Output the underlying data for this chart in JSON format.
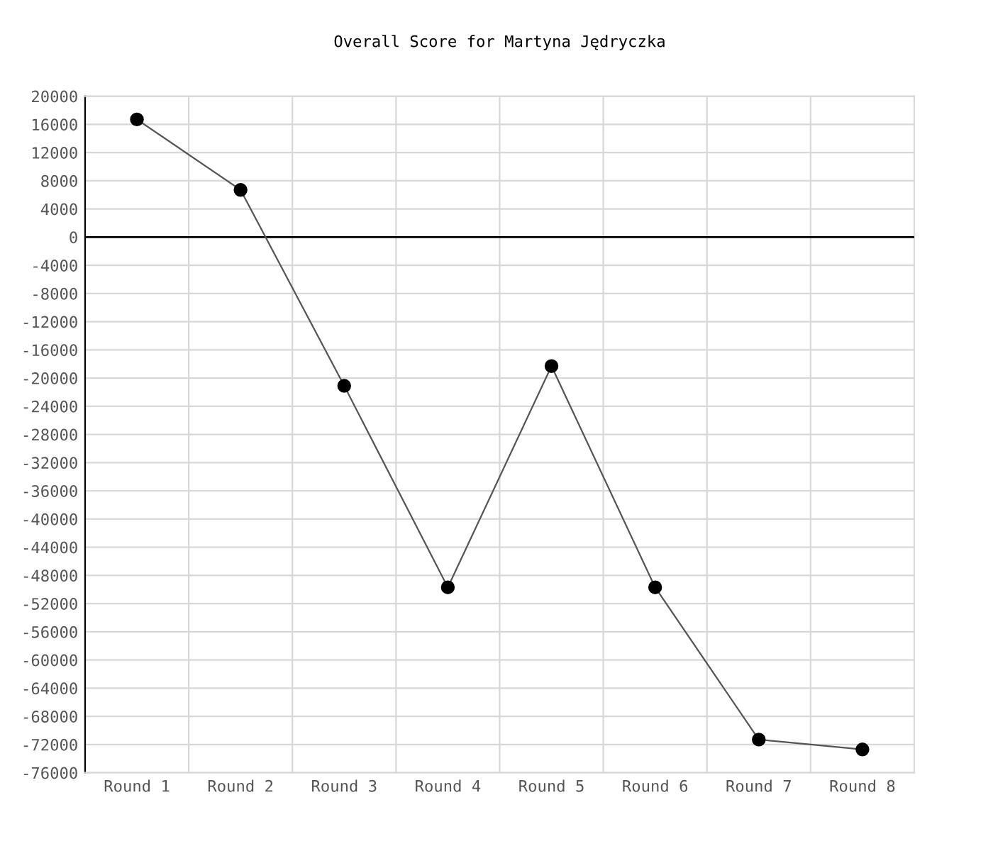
{
  "chart_data": {
    "type": "line",
    "title": "Overall Score for Martyna Jędryczka",
    "categories": [
      "Round 1",
      "Round 2",
      "Round 3",
      "Round 4",
      "Round 5",
      "Round 6",
      "Round 7",
      "Round 8"
    ],
    "series": [
      {
        "color": "#000000",
        "values": [
          16700,
          6700,
          -21100,
          -49700,
          -18300,
          -49700,
          -71300,
          -72700
        ]
      }
    ],
    "ylim": [
      -76000,
      20000
    ],
    "yticks": [
      -76000,
      -72000,
      -68000,
      -64000,
      -60000,
      -56000,
      -52000,
      -48000,
      -44000,
      -40000,
      -36000,
      -32000,
      -28000,
      -24000,
      -20000,
      -16000,
      -12000,
      -8000,
      -4000,
      0,
      4000,
      8000,
      12000,
      16000,
      20000
    ],
    "ref_lines": [
      {
        "axis": "y",
        "value": 0,
        "color": "#000000"
      }
    ],
    "grid": true,
    "marker": "circle",
    "line_style": "solid"
  }
}
